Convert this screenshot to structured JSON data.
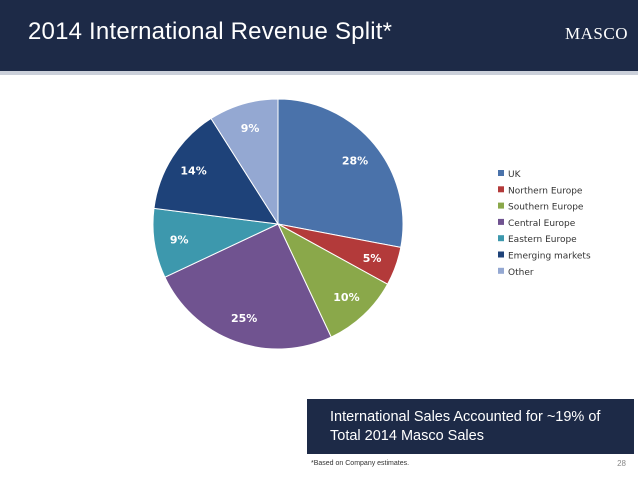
{
  "header": {
    "title": "2014 International Revenue Split*",
    "logo_text": "MASCO",
    "background_color": "#1d2a47"
  },
  "chart_data": {
    "type": "pie",
    "title": "",
    "legend_position": "right",
    "slices": [
      {
        "label": "UK",
        "value": 28,
        "data_label": "28%",
        "color": "#4a72aa"
      },
      {
        "label": "Northern Europe",
        "value": 5,
        "data_label": "5%",
        "color": "#b33a3a"
      },
      {
        "label": "Southern Europe",
        "value": 10,
        "data_label": "10%",
        "color": "#8aa84a"
      },
      {
        "label": "Central Europe",
        "value": 25,
        "data_label": "25%",
        "color": "#705390"
      },
      {
        "label": "Eastern Europe",
        "value": 9,
        "data_label": "9%",
        "color": "#3d98ad"
      },
      {
        "label": "Emerging markets",
        "value": 14,
        "data_label": "14%",
        "color": "#1e4279"
      },
      {
        "label": "Other",
        "value": 9,
        "data_label": "9%",
        "color": "#94a8d2"
      }
    ]
  },
  "callout": {
    "text": "International Sales Accounted for ~19% of Total 2014 Masco Sales"
  },
  "footnote": "*Based on Company estimates.",
  "page_number": "28"
}
